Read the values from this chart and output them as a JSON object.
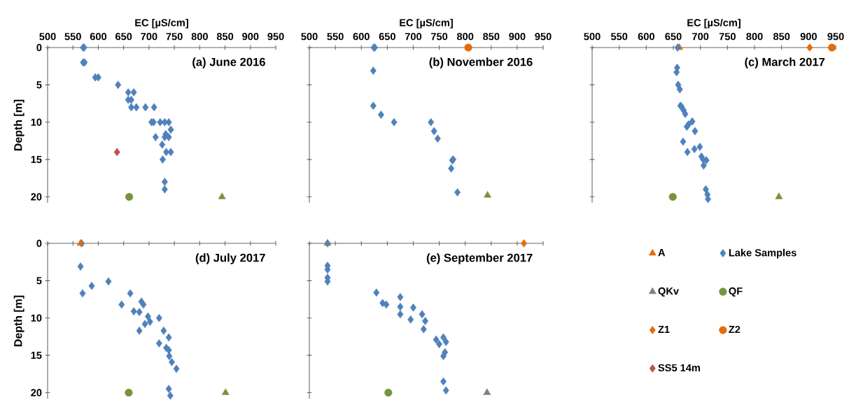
{
  "chart_data": [
    {
      "type": "scatter",
      "title": "(a) June 2016",
      "xlabel": "EC [µS/cm]",
      "ylabel": "Depth [m]",
      "xlim": [
        500,
        950
      ],
      "ylim": [
        20.8,
        0
      ],
      "xticks": [
        500,
        550,
        600,
        650,
        700,
        750,
        800,
        850,
        900,
        950
      ],
      "yticks": [
        0,
        5,
        10,
        15,
        20
      ],
      "series": [
        {
          "color": "#4f81bd",
          "marker": "diamond",
          "x": [
            570,
            572,
            570,
            573,
            594,
            600,
            639,
            659,
            670,
            659,
            665,
            665,
            675,
            693,
            710,
            705,
            709,
            722,
            731,
            739,
            743,
            713,
            731,
            739,
            733,
            726,
            734,
            743,
            727,
            731,
            731
          ],
          "values": [
            0,
            0,
            2,
            2,
            4,
            4,
            5,
            6,
            6,
            7,
            7,
            8,
            8,
            8,
            8,
            10,
            10,
            10,
            10,
            10,
            11,
            12,
            12,
            12,
            11.6,
            13,
            14,
            14,
            15,
            18,
            19
          ]
        },
        {
          "color": "#c0504d",
          "marker": "diamond",
          "x": [
            637
          ],
          "values": [
            14
          ]
        },
        {
          "color": "#77933c",
          "marker": "circle",
          "x": [
            661
          ],
          "values": [
            20
          ]
        },
        {
          "color": "#77933c",
          "marker": "triangle",
          "x": [
            844
          ],
          "values": [
            20
          ]
        }
      ]
    },
    {
      "type": "scatter",
      "title": "(b) November 2016",
      "xlabel": "EC [µS/cm]",
      "xlim": [
        500,
        950
      ],
      "ylim": [
        20.8,
        0
      ],
      "xticks": [
        500,
        550,
        600,
        650,
        700,
        750,
        800,
        850,
        900,
        950
      ],
      "yticks": [
        0,
        5,
        10,
        15,
        20
      ],
      "tick_labels": "x",
      "series": [
        {
          "color": "#4f81bd",
          "marker": "diamond",
          "x": [
            624,
            626,
            623,
            623,
            638,
            663,
            734,
            740,
            747,
            775,
            777,
            773,
            785
          ],
          "values": [
            0,
            0,
            3.1,
            7.8,
            9,
            10,
            10,
            11.2,
            12.2,
            15.1,
            15,
            16.2,
            19.4
          ]
        },
        {
          "color": "#e46c0a",
          "marker": "circle",
          "x": [
            806
          ],
          "values": [
            0
          ]
        },
        {
          "color": "#77933c",
          "marker": "triangle",
          "x": [
            843
          ],
          "values": [
            19.8
          ]
        }
      ]
    },
    {
      "type": "scatter",
      "title": "(c) March 2017",
      "xlabel": "EC [µS/cm]",
      "xlim": [
        500,
        950
      ],
      "ylim": [
        20.8,
        0
      ],
      "xticks": [
        500,
        550,
        600,
        650,
        700,
        750,
        800,
        850,
        900,
        950
      ],
      "yticks": [
        0,
        5,
        10,
        15,
        20
      ],
      "tick_labels": "x",
      "series": [
        {
          "color": "#e46c0a",
          "marker": "triangle",
          "x": [
            661
          ],
          "values": [
            0
          ]
        },
        {
          "color": "#4f81bd",
          "marker": "diamond",
          "x": [
            658,
            657,
            656,
            659,
            662,
            663,
            665,
            669,
            672,
            685,
            678,
            675,
            690,
            668,
            699,
            689,
            676,
            702,
            705,
            711,
            706,
            710,
            713,
            714
          ],
          "values": [
            0,
            2.7,
            3.3,
            5,
            5.6,
            7.8,
            7.9,
            8.4,
            8.9,
            9.9,
            10.3,
            10.6,
            11.2,
            12.6,
            13.3,
            13.6,
            14,
            14.6,
            15,
            15.1,
            15.8,
            19,
            19.7,
            20.3
          ]
        },
        {
          "color": "#77933c",
          "marker": "circle",
          "x": [
            649
          ],
          "values": [
            20
          ]
        },
        {
          "color": "#77933c",
          "marker": "triangle",
          "x": [
            845
          ],
          "values": [
            20
          ]
        },
        {
          "color": "#e46c0a",
          "marker": "diamond",
          "x": [
            902
          ],
          "values": [
            0
          ]
        },
        {
          "color": "#e46c0a",
          "marker": "circle",
          "x": [
            943
          ],
          "values": [
            0
          ]
        }
      ]
    },
    {
      "type": "scatter",
      "title": "(d) July 2017",
      "ylabel": "Depth [m]",
      "xlim": [
        500,
        950
      ],
      "ylim": [
        20.8,
        0
      ],
      "xticks": [
        500,
        550,
        600,
        650,
        700,
        750,
        800,
        850,
        900,
        950
      ],
      "yticks": [
        0,
        5,
        10,
        15,
        20
      ],
      "tick_labels": "y",
      "series": [
        {
          "color": "#4f81bd",
          "marker": "diamond",
          "x": [
            567,
            565,
            569,
            587,
            620,
            663,
            646,
            670,
            681,
            685,
            689,
            698,
            702,
            692,
            720,
            681,
            729,
            739,
            720,
            734,
            739,
            740,
            745,
            754,
            739,
            742
          ],
          "values": [
            0,
            3.1,
            6.7,
            5.7,
            5.1,
            6.7,
            8.2,
            9.1,
            9.2,
            7.8,
            8.2,
            9.8,
            10.5,
            10.8,
            10,
            11.7,
            11.7,
            12.6,
            13.4,
            14,
            14.3,
            15.1,
            15.9,
            16.8,
            19.5,
            20.4
          ]
        },
        {
          "color": "#e46c0a",
          "marker": "triangle",
          "x": [
            565
          ],
          "values": [
            0
          ]
        },
        {
          "color": "#77933c",
          "marker": "circle",
          "x": [
            660
          ],
          "values": [
            20
          ]
        },
        {
          "color": "#77933c",
          "marker": "triangle",
          "x": [
            851
          ],
          "values": [
            20
          ]
        }
      ]
    },
    {
      "type": "scatter",
      "title": "(e) September 2017",
      "xlim": [
        500,
        950
      ],
      "ylim": [
        20.8,
        0
      ],
      "xticks": [
        500,
        550,
        600,
        650,
        700,
        750,
        800,
        850,
        900,
        950
      ],
      "yticks": [
        0,
        5,
        10,
        15,
        20
      ],
      "tick_labels": false,
      "legend": "right",
      "series": [
        {
          "name": "A",
          "color": "#e46c0a",
          "marker": "triangle",
          "x": [
            535
          ],
          "values": [
            0
          ]
        },
        {
          "name": "Lake Samples",
          "color": "#4f81bd",
          "marker": "diamond",
          "x": [
            535,
            535,
            535,
            535,
            535,
            629,
            641,
            648,
            675,
            675,
            675,
            700,
            695,
            717,
            723,
            720,
            744,
            750,
            758,
            763,
            761,
            758,
            758,
            763
          ],
          "values": [
            0,
            3,
            3.5,
            4.6,
            5.1,
            6.6,
            8,
            8.2,
            7.2,
            8.5,
            9.5,
            8.6,
            10.2,
            9.5,
            10.4,
            11.5,
            12.9,
            13.5,
            12.6,
            13.2,
            14.6,
            15.1,
            18.5,
            19.7
          ]
        },
        {
          "name": "QKv",
          "color": "#7f7f7f",
          "marker": "triangle",
          "x": [
            842
          ],
          "values": [
            20
          ]
        },
        {
          "name": "QF",
          "color": "#77933c",
          "marker": "circle",
          "x": [
            652
          ],
          "values": [
            20
          ]
        },
        {
          "name": "Z1",
          "color": "#e46c0a",
          "marker": "diamond",
          "x": [
            913
          ],
          "values": [
            0
          ]
        },
        {
          "name": "Z2",
          "color": "#e46c0a",
          "marker": "circle"
        },
        {
          "name": "SS5 14m",
          "color": "#c0504d",
          "marker": "diamond"
        }
      ]
    }
  ]
}
